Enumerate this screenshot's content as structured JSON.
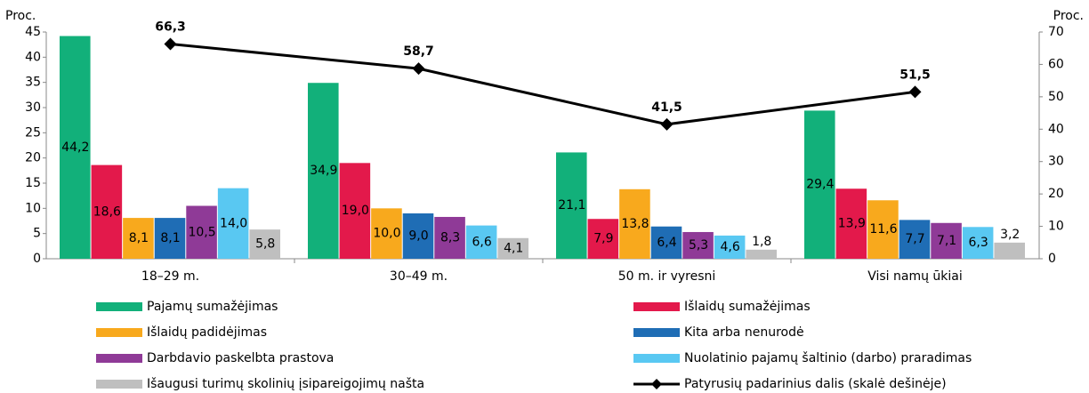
{
  "chart_data": {
    "type": "bar_line",
    "ylabel": "Proc.",
    "y2label": "Proc.",
    "categories": [
      "18–29 m.",
      "30–49 m.",
      "50 m. ir vyresni",
      "Visi namų ūkiai"
    ],
    "ylim": [
      0,
      45
    ],
    "yticks": [
      0,
      5,
      10,
      15,
      20,
      25,
      30,
      35,
      40,
      45
    ],
    "y2lim": [
      0,
      70
    ],
    "y2ticks": [
      0,
      10,
      20,
      30,
      40,
      50,
      60,
      70
    ],
    "series": [
      {
        "name": "Pajamų sumažėjimas",
        "color": "#12b07a",
        "label_color": "#222",
        "values": [
          44.2,
          34.9,
          21.1,
          29.4
        ],
        "value_labels": [
          "44,2",
          "34,9",
          "21,1",
          "29,4"
        ]
      },
      {
        "name": "Išlaidų sumažėjimas",
        "color": "#e3194b",
        "label_color": "#fff",
        "values": [
          18.6,
          19.0,
          7.9,
          13.9
        ],
        "value_labels": [
          "18,6",
          "19,0",
          "7,9",
          "13,9"
        ]
      },
      {
        "name": "Išlaidų padidėjimas",
        "color": "#f8a91d",
        "label_color": "#222",
        "values": [
          8.1,
          10.0,
          13.8,
          11.6
        ],
        "value_labels": [
          "8,1",
          "10,0",
          "13,8",
          "11,6"
        ]
      },
      {
        "name": "Kita arba nenurodė",
        "color": "#1f6db5",
        "label_color": "#fff",
        "values": [
          8.1,
          9.0,
          6.4,
          7.7
        ],
        "value_labels": [
          "8,1",
          "9,0",
          "6,4",
          "7,7"
        ]
      },
      {
        "name": "Darbdavio paskelbta prastova",
        "color": "#8f3a97",
        "label_color": "#fff",
        "values": [
          10.5,
          8.3,
          5.3,
          7.1
        ],
        "value_labels": [
          "10,5",
          "8,3",
          "5,3",
          "7,1"
        ]
      },
      {
        "name": "Nuolatinio pajamų šaltinio (darbo) praradimas",
        "color": "#59c8f2",
        "label_color": "#222",
        "values": [
          14.0,
          6.6,
          4.6,
          6.3
        ],
        "value_labels": [
          "14,0",
          "6,6",
          "4,6",
          "6,3"
        ]
      },
      {
        "name": "Išaugusi turimų skolinių įsipareigojimų našta",
        "color": "#bfbfbf",
        "label_color": "#222",
        "values": [
          5.8,
          4.1,
          1.8,
          3.2
        ],
        "value_labels": [
          "5,8",
          "4,1",
          "1,8",
          "3,2"
        ]
      },
      {
        "name": "Patyrusių padarinius dalis (skalė dešinėje)",
        "color": "#000000",
        "axis": "y2",
        "values": [
          66.3,
          58.7,
          41.5,
          51.5
        ],
        "value_labels": [
          "66,3",
          "58,7",
          "41,5",
          "51,5"
        ]
      }
    ]
  }
}
